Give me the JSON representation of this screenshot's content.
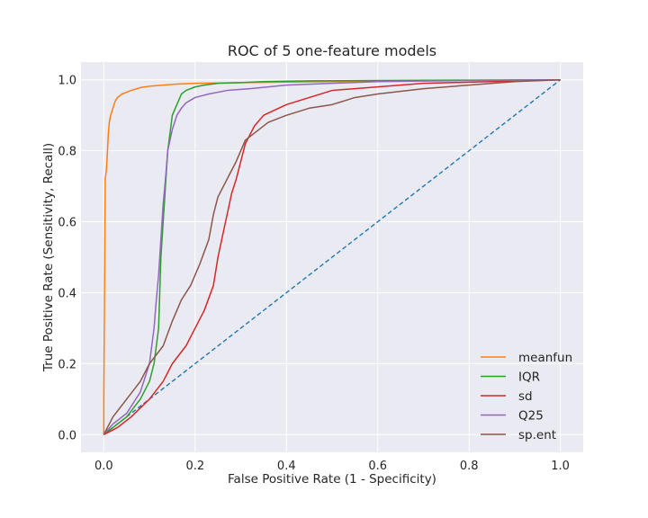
{
  "chart_data": {
    "type": "line",
    "title": "ROC of 5 one-feature models",
    "xlabel": "False Positive Rate (1 - Specificity)",
    "ylabel": "True Positive Rate (Sensitivity, Recall)",
    "xlim": [
      -0.05,
      1.05
    ],
    "ylim": [
      -0.05,
      1.05
    ],
    "xticks": [
      0.0,
      0.2,
      0.4,
      0.6,
      0.8,
      1.0
    ],
    "yticks": [
      0.0,
      0.2,
      0.4,
      0.6,
      0.8,
      1.0
    ],
    "xtick_labels": [
      "0.0",
      "0.2",
      "0.4",
      "0.6",
      "0.8",
      "1.0"
    ],
    "ytick_labels": [
      "0.0",
      "0.2",
      "0.4",
      "0.6",
      "0.8",
      "1.0"
    ],
    "grid": true,
    "legend_position": "lower-right",
    "background": "#eaeaf2",
    "diagonal": {
      "style": "dashed",
      "color": "#1f77b4",
      "x": [
        0,
        1
      ],
      "y": [
        0,
        1
      ]
    },
    "series": [
      {
        "name": "meanfun",
        "color": "#ff7f0e",
        "x": [
          0.0,
          0.0,
          0.002,
          0.003,
          0.005,
          0.006,
          0.008,
          0.01,
          0.012,
          0.015,
          0.02,
          0.025,
          0.03,
          0.04,
          0.05,
          0.06,
          0.08,
          0.1,
          0.13,
          0.16,
          0.2,
          0.3,
          0.5,
          0.7,
          1.0
        ],
        "y": [
          0.0,
          0.1,
          0.5,
          0.72,
          0.74,
          0.75,
          0.8,
          0.85,
          0.88,
          0.9,
          0.92,
          0.94,
          0.95,
          0.96,
          0.965,
          0.97,
          0.978,
          0.982,
          0.985,
          0.988,
          0.99,
          0.992,
          0.995,
          0.998,
          1.0
        ]
      },
      {
        "name": "IQR",
        "color": "#2ca02c",
        "x": [
          0.0,
          0.02,
          0.05,
          0.08,
          0.1,
          0.11,
          0.12,
          0.125,
          0.13,
          0.135,
          0.14,
          0.145,
          0.15,
          0.16,
          0.17,
          0.18,
          0.2,
          0.22,
          0.25,
          0.3,
          0.35,
          0.45,
          0.6,
          0.8,
          1.0
        ],
        "y": [
          0.0,
          0.02,
          0.05,
          0.1,
          0.15,
          0.2,
          0.3,
          0.5,
          0.6,
          0.7,
          0.8,
          0.85,
          0.9,
          0.93,
          0.96,
          0.97,
          0.98,
          0.985,
          0.99,
          0.992,
          0.995,
          0.997,
          0.998,
          0.999,
          1.0
        ]
      },
      {
        "name": "sd",
        "color": "#d62728",
        "x": [
          0.0,
          0.03,
          0.06,
          0.1,
          0.13,
          0.15,
          0.18,
          0.2,
          0.22,
          0.24,
          0.25,
          0.26,
          0.27,
          0.28,
          0.29,
          0.3,
          0.31,
          0.33,
          0.35,
          0.4,
          0.45,
          0.5,
          0.6,
          0.7,
          0.85,
          1.0
        ],
        "y": [
          0.0,
          0.02,
          0.05,
          0.1,
          0.15,
          0.2,
          0.25,
          0.3,
          0.35,
          0.42,
          0.5,
          0.56,
          0.62,
          0.68,
          0.72,
          0.77,
          0.82,
          0.87,
          0.9,
          0.93,
          0.95,
          0.97,
          0.98,
          0.99,
          0.995,
          1.0
        ]
      },
      {
        "name": "Q25",
        "color": "#9467bd",
        "x": [
          0.0,
          0.02,
          0.05,
          0.08,
          0.1,
          0.11,
          0.115,
          0.12,
          0.125,
          0.13,
          0.135,
          0.14,
          0.15,
          0.16,
          0.17,
          0.18,
          0.2,
          0.23,
          0.27,
          0.32,
          0.4,
          0.5,
          0.6,
          0.8,
          1.0
        ],
        "y": [
          0.0,
          0.03,
          0.06,
          0.12,
          0.2,
          0.3,
          0.38,
          0.45,
          0.55,
          0.65,
          0.72,
          0.8,
          0.86,
          0.9,
          0.92,
          0.935,
          0.95,
          0.96,
          0.97,
          0.975,
          0.985,
          0.99,
          0.995,
          0.998,
          1.0
        ]
      },
      {
        "name": "sp.ent",
        "color": "#8c564b",
        "x": [
          0.0,
          0.02,
          0.05,
          0.08,
          0.1,
          0.13,
          0.15,
          0.17,
          0.19,
          0.21,
          0.23,
          0.24,
          0.25,
          0.27,
          0.29,
          0.31,
          0.33,
          0.36,
          0.4,
          0.45,
          0.5,
          0.55,
          0.6,
          0.7,
          0.8,
          0.9,
          1.0
        ],
        "y": [
          0.0,
          0.05,
          0.1,
          0.15,
          0.2,
          0.25,
          0.32,
          0.38,
          0.42,
          0.48,
          0.55,
          0.62,
          0.67,
          0.72,
          0.77,
          0.83,
          0.85,
          0.88,
          0.9,
          0.92,
          0.93,
          0.95,
          0.96,
          0.975,
          0.985,
          0.995,
          1.0
        ]
      }
    ]
  }
}
